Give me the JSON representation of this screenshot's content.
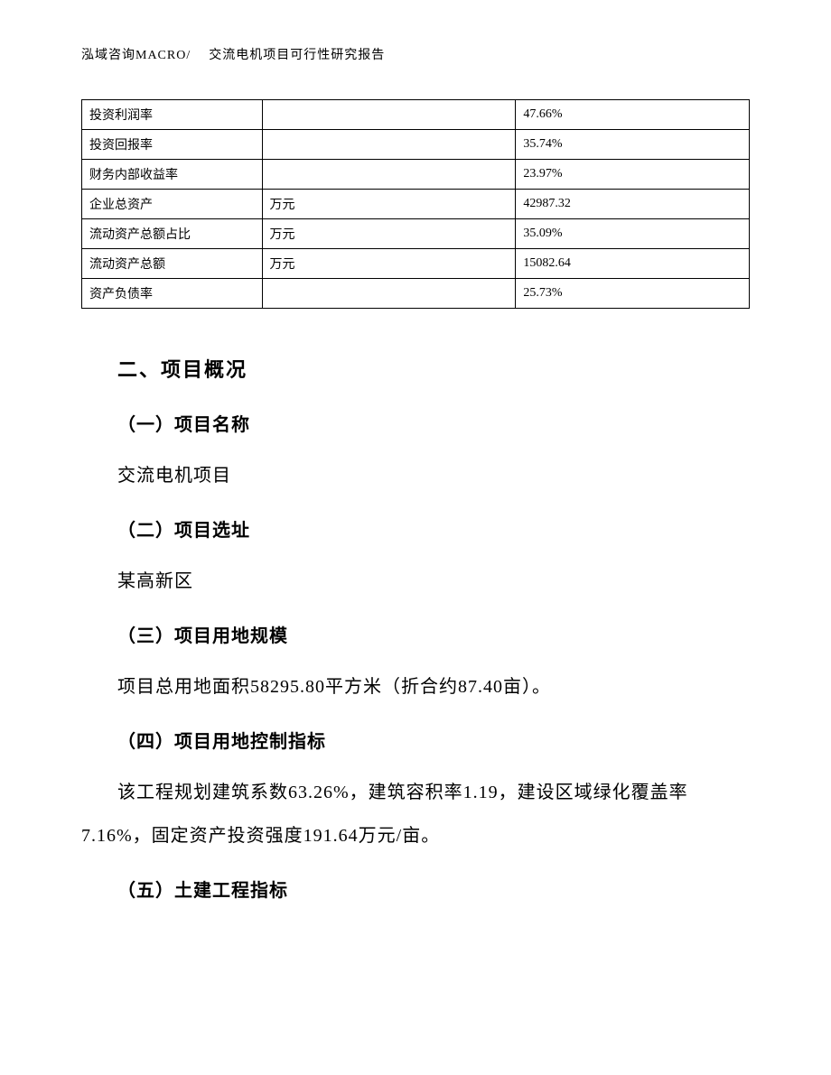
{
  "header": {
    "company": "泓域咨询MACRO/",
    "doc_title": "交流电机项目可行性研究报告"
  },
  "table": {
    "rows": [
      {
        "label": "投资利润率",
        "unit": "",
        "value": "47.66%"
      },
      {
        "label": "投资回报率",
        "unit": "",
        "value": "35.74%"
      },
      {
        "label": "财务内部收益率",
        "unit": "",
        "value": "23.97%"
      },
      {
        "label": "企业总资产",
        "unit": "万元",
        "value": "42987.32"
      },
      {
        "label": "流动资产总额占比",
        "unit": "万元",
        "value": "35.09%"
      },
      {
        "label": "流动资产总额",
        "unit": "万元",
        "value": "15082.64"
      },
      {
        "label": "资产负债率",
        "unit": "",
        "value": "25.73%"
      }
    ]
  },
  "sections": {
    "main_heading": "二、项目概况",
    "s1": {
      "title": "（一）项目名称",
      "body": "交流电机项目"
    },
    "s2": {
      "title": "（二）项目选址",
      "body": "某高新区"
    },
    "s3": {
      "title": "（三）项目用地规模",
      "body": "项目总用地面积58295.80平方米（折合约87.40亩）。"
    },
    "s4": {
      "title": "（四）项目用地控制指标",
      "body": "该工程规划建筑系数63.26%，建筑容积率1.19，建设区域绿化覆盖率7.16%，固定资产投资强度191.64万元/亩。"
    },
    "s5": {
      "title": "（五）土建工程指标"
    }
  },
  "style": {
    "page_bg": "#ffffff",
    "text_color": "#000000",
    "border_color": "#000000",
    "header_fontsize": 14,
    "table_fontsize": 14,
    "h2_fontsize": 22,
    "h3_fontsize": 20,
    "body_fontsize": 20,
    "line_height": 2.4
  }
}
